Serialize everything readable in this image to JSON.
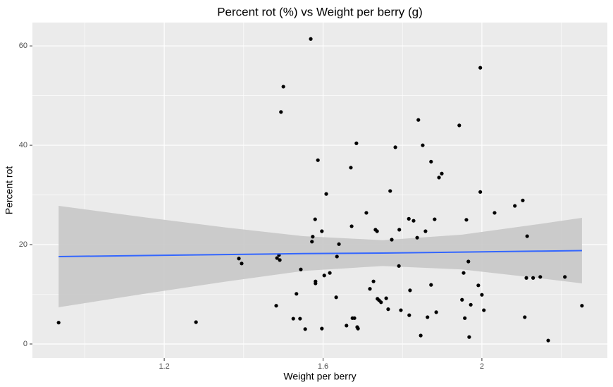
{
  "chart_data": {
    "type": "scatter",
    "title": "Percent rot (%) vs Weight per berry (g)",
    "xlabel": "Weight per berry",
    "ylabel": "Percent rot",
    "xlim": [
      0.868,
      2.316
    ],
    "ylim": [
      -2.84,
      64.7
    ],
    "xticks": [
      1.2,
      1.6,
      2.0
    ],
    "yticks": [
      0,
      20,
      40,
      60
    ],
    "xminor": [
      1.0,
      1.4,
      1.8,
      2.2
    ],
    "yminor": [
      10,
      30,
      50
    ],
    "grid": true,
    "color": "#000000",
    "x": [
      0.934,
      1.28,
      1.388,
      1.395,
      1.482,
      1.484,
      1.489,
      1.491,
      1.494,
      1.5,
      1.525,
      1.533,
      1.542,
      1.544,
      1.555,
      1.569,
      1.572,
      1.574,
      1.58,
      1.581,
      1.581,
      1.587,
      1.597,
      1.597,
      1.603,
      1.608,
      1.617,
      1.633,
      1.635,
      1.64,
      1.659,
      1.67,
      1.672,
      1.674,
      1.679,
      1.684,
      1.686,
      1.688,
      1.709,
      1.718,
      1.727,
      1.732,
      1.736,
      1.737,
      1.741,
      1.746,
      1.759,
      1.764,
      1.769,
      1.773,
      1.782,
      1.791,
      1.792,
      1.796,
      1.816,
      1.817,
      1.819,
      1.828,
      1.837,
      1.84,
      1.846,
      1.851,
      1.858,
      1.863,
      1.872,
      1.872,
      1.881,
      1.885,
      1.892,
      1.899,
      1.943,
      1.95,
      1.954,
      1.957,
      1.961,
      1.966,
      1.968,
      1.972,
      1.991,
      1.996,
      1.996,
      2.0,
      2.005,
      2.032,
      2.083,
      2.103,
      2.108,
      2.112,
      2.114,
      2.129,
      2.147,
      2.167,
      2.209,
      2.252
    ],
    "values": [
      4.3,
      4.4,
      17.2,
      16.2,
      7.7,
      17.3,
      17.9,
      16.9,
      46.7,
      51.8,
      5.1,
      10.1,
      5.1,
      15.0,
      3.0,
      61.4,
      20.6,
      21.6,
      25.1,
      12.6,
      12.2,
      37.0,
      3.1,
      22.7,
      13.8,
      30.2,
      14.3,
      9.4,
      17.6,
      20.1,
      3.7,
      35.5,
      23.7,
      5.2,
      5.2,
      40.4,
      3.4,
      3.1,
      26.4,
      11.1,
      12.6,
      23.0,
      22.7,
      9.1,
      8.8,
      8.4,
      9.2,
      7.0,
      30.8,
      21.0,
      39.6,
      15.7,
      23.0,
      6.8,
      25.2,
      5.8,
      10.8,
      24.8,
      21.4,
      45.1,
      1.7,
      40.0,
      22.7,
      5.4,
      36.7,
      11.9,
      25.1,
      6.4,
      33.5,
      34.3,
      44.0,
      8.9,
      14.3,
      5.2,
      25.0,
      16.6,
      1.4,
      7.9,
      11.8,
      55.6,
      30.6,
      9.9,
      6.8,
      26.4,
      27.8,
      28.9,
      5.4,
      13.3,
      21.7,
      13.3,
      13.5,
      0.7,
      13.5,
      7.7
    ],
    "fit": {
      "color": "#3366ff",
      "band_color": "#c8c8c8",
      "x": [
        0.934,
        1.15,
        1.35,
        1.55,
        1.75,
        1.95,
        2.15,
        2.252
      ],
      "values": [
        17.6,
        17.8,
        18.0,
        18.2,
        18.3,
        18.5,
        18.7,
        18.8
      ],
      "lower": [
        7.4,
        10.1,
        12.5,
        14.7,
        15.7,
        15.0,
        13.2,
        12.2
      ],
      "upper": [
        27.8,
        25.5,
        23.5,
        21.7,
        20.9,
        22.0,
        24.2,
        25.4
      ]
    }
  }
}
